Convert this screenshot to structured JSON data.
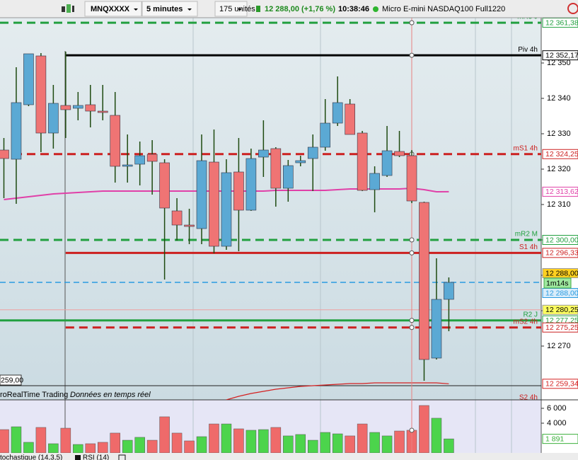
{
  "toolbar": {
    "symbol": "MNQXXXX",
    "period": "5 minutes",
    "units": "175 unités",
    "price": "12 288,00 (+1,76 %)",
    "time": "10:38:46",
    "instrument": "Micro E-mini NASDAQ100 Full1220"
  },
  "chart_data": [
    {
      "type": "candlestick",
      "open": [
        12325.4,
        12322.8,
        12338.2,
        12352.0,
        12330.2,
        12338.0,
        12337.2,
        12338.2,
        12336.4,
        12335.2,
        12320.8,
        12321.4,
        12324.2,
        12321.8,
        12308.2,
        12304.2,
        12303.2,
        12322.0,
        12298.2,
        12319.2,
        12308.4,
        12323.4,
        12325.8,
        12314.6,
        12321.8,
        12323.0,
        12326.2,
        12333.0,
        12338.4,
        12330.2,
        12314.2,
        12318.2,
        12325.0,
        12323.8,
        12310.6,
        12266.6,
        12283.2
      ],
      "high": [
        12328.8,
        12348.8,
        12352.6,
        12352.8,
        12343.8,
        12353.2,
        12341.8,
        12343.8,
        12343.8,
        12341.8,
        12329.8,
        12327.8,
        12328.2,
        12322.8,
        12311.8,
        12308.8,
        12329.8,
        12331.2,
        12322.8,
        12328.8,
        12325.8,
        12333.8,
        12326.2,
        12322.6,
        12323.8,
        12329.8,
        12339.8,
        12346.2,
        12339.8,
        12330.8,
        12320.8,
        12332.2,
        12330.8,
        12325.4,
        12310.8,
        12294.8,
        12289.4
      ],
      "low": [
        12311.8,
        12310.2,
        12337.8,
        12324.8,
        12325.8,
        12328.8,
        12333.8,
        12331.8,
        12333.8,
        12316.2,
        12316.2,
        12315.4,
        12312.8,
        12288.8,
        12299.8,
        12298.8,
        12298.8,
        12296.2,
        12297.2,
        12296.8,
        12308.2,
        12317.8,
        12309.4,
        12310.8,
        12320.8,
        12313.8,
        12325.2,
        12332.2,
        12329.8,
        12313.8,
        12307.8,
        12317.8,
        12323.4,
        12310.4,
        12260.2,
        12266.2,
        12274.2
      ],
      "close": [
        12323.0,
        12338.8,
        12352.6,
        12330.2,
        12338.6,
        12336.8,
        12338.0,
        12336.4,
        12336.0,
        12320.8,
        12321.2,
        12323.8,
        12322.2,
        12309.0,
        12304.2,
        12303.8,
        12322.4,
        12298.2,
        12319.0,
        12308.4,
        12323.0,
        12325.4,
        12314.6,
        12321.0,
        12322.4,
        12326.2,
        12333.0,
        12338.8,
        12329.8,
        12314.0,
        12318.8,
        12325.2,
        12323.8,
        12311.0,
        12266.2,
        12283.2,
        12288.0
      ],
      "colors": {
        "up": "#5ba9d4",
        "down": "#ef7474",
        "wick": "#1e4a10"
      },
      "ylim": [
        12258.8,
        12362.8
      ],
      "yticks": [
        {
          "value": 12270,
          "label": "12 270"
        },
        {
          "value": 12280,
          "label": "12 280"
        },
        {
          "value": 12290,
          "label": "12 290"
        },
        {
          "value": 12300,
          "label": "12 300"
        },
        {
          "value": 12310,
          "label": "12 310"
        },
        {
          "value": 12320,
          "label": "12 320"
        },
        {
          "value": 12330,
          "label": "12 330"
        },
        {
          "value": 12340,
          "label": "12 340"
        },
        {
          "value": 12350,
          "label": "12 350"
        }
      ],
      "ma": {
        "color": "#e040a8",
        "values": [
          12311.4,
          12311.8,
          12312.2,
          12312.6,
          12313.0,
          12313.2,
          12313.4,
          12313.6,
          12313.8,
          12313.8,
          12313.8,
          12313.8,
          12313.8,
          12313.8,
          12313.8,
          12313.8,
          12313.8,
          12313.8,
          12313.8,
          12313.8,
          12313.8,
          12313.8,
          12314.0,
          12314.0,
          12314.0,
          12314.0,
          12314.0,
          12314.2,
          12314.4,
          12314.4,
          12314.4,
          12314.4,
          12314.4,
          12314.6,
          12314.2,
          12313.6,
          12313.62
        ],
        "last_label": "12 313,62"
      },
      "ma2": {
        "color": "#d42020",
        "values": [
          null,
          null,
          null,
          null,
          null,
          null,
          null,
          null,
          null,
          null,
          null,
          null,
          null,
          null,
          null,
          null,
          null,
          null,
          12254.8,
          12255.8,
          12256.6,
          12257.2,
          12257.8,
          12258.2,
          12258.6,
          12258.8,
          12259.0,
          12259.2,
          12259.4,
          12259.4,
          12259.6,
          12259.6,
          12259.6,
          12259.6,
          12259.6,
          12259.6,
          12259.34
        ],
        "last_label": "12 259,34"
      },
      "levels": [
        {
          "name": "mR3 J",
          "value": 12361.38,
          "label": "12 361,38",
          "color": "#22a040",
          "style": "dashed",
          "from_candle": 0
        },
        {
          "name": "Piv 4h",
          "value": 12352.17,
          "label": "12 352,17",
          "color": "#000000",
          "style": "solid",
          "from_candle": 5
        },
        {
          "name": "mS1 4h",
          "value": 12324.25,
          "label": "12 324,25",
          "color": "#cc2020",
          "style": "dashed",
          "from_candle": 0
        },
        {
          "name": "mR2 M",
          "value": 12300.0,
          "label": "12 300,00",
          "color": "#22a040",
          "style": "dashed",
          "from_candle": 0
        },
        {
          "name": "S1 4h",
          "value": 12296.33,
          "label": "12 296,33",
          "color": "#cc2020",
          "style": "solid",
          "from_candle": 5
        },
        {
          "name": "R2 J",
          "value": 12277.25,
          "label": "12 277,25",
          "color": "#22a040",
          "style": "solid",
          "from_candle": 0
        },
        {
          "name": "mS2 4h",
          "value": 12275.25,
          "label": "12 275,25",
          "color": "#cc2020",
          "style": "dashed",
          "from_candle": 5
        }
      ],
      "last_price": {
        "value": 12288.0,
        "label": "12 288,00",
        "countdown": "1m14s",
        "color": "#2a9be0"
      },
      "day_open": {
        "value": 12280.25,
        "label": "12 280,25",
        "color": "#f0a0a0"
      },
      "cursor_label": "259,00",
      "bottom_level": "S2 4h",
      "watermark": "roRealTime Trading",
      "watermark_note": "Données en temps réel"
    },
    {
      "type": "bar",
      "values": [
        3140,
        3520,
        1430,
        3430,
        1240,
        3330,
        1140,
        1240,
        1430,
        2670,
        1710,
        2100,
        1710,
        4860,
        2670,
        1620,
        2190,
        3900,
        3900,
        3240,
        3050,
        3140,
        3430,
        2290,
        2480,
        1710,
        2760,
        2570,
        2290,
        3900,
        2760,
        2290,
        2950,
        3050,
        6380,
        4670,
        1891
      ],
      "colors": {
        "up": "#4cd44c",
        "down": "#ef6a6a"
      },
      "ylim": [
        0,
        7140
      ],
      "yticks": [
        {
          "value": 6000,
          "label": "6 000"
        },
        {
          "value": 4000,
          "label": "4 000"
        }
      ],
      "last_label": "1 891"
    }
  ],
  "indicator_tabs": [
    "tochastique (14,3,5)",
    "RSI (14)"
  ]
}
